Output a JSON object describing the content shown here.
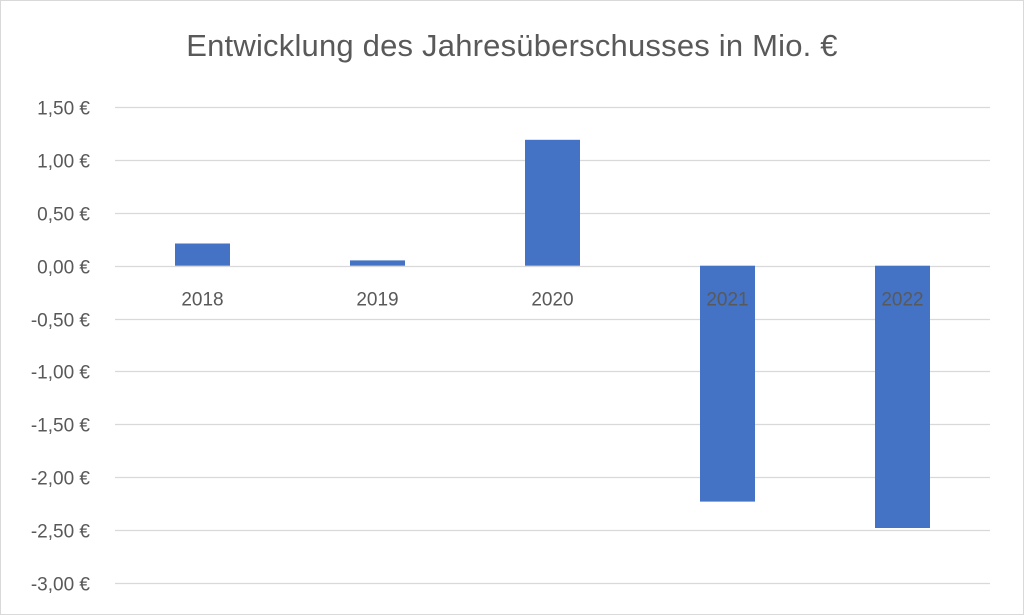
{
  "chart_data": {
    "type": "bar",
    "title": "Entwicklung des Jahresüberschusses in Mio. €",
    "categories": [
      "2018",
      "2019",
      "2020",
      "2021",
      "2022"
    ],
    "values": [
      0.21,
      0.05,
      1.19,
      -2.23,
      -2.48
    ],
    "ylim": [
      -3.0,
      1.5
    ],
    "ytick_values": [
      1.5,
      1.0,
      0.5,
      0.0,
      -0.5,
      -1.0,
      -1.5,
      -2.0,
      -2.5,
      -3.0
    ],
    "ytick_labels": [
      "1,50 €",
      "1,00 €",
      "0,50 €",
      "0,00 €",
      "-0,50 €",
      "-1,00 €",
      "-1,50 €",
      "-2,00 €",
      "-2,50 €",
      "-3,00 €"
    ],
    "grid": true,
    "legend": false,
    "colors": {
      "bar": "#4472c4",
      "grid": "#d9d9d9",
      "text": "#595959"
    }
  }
}
